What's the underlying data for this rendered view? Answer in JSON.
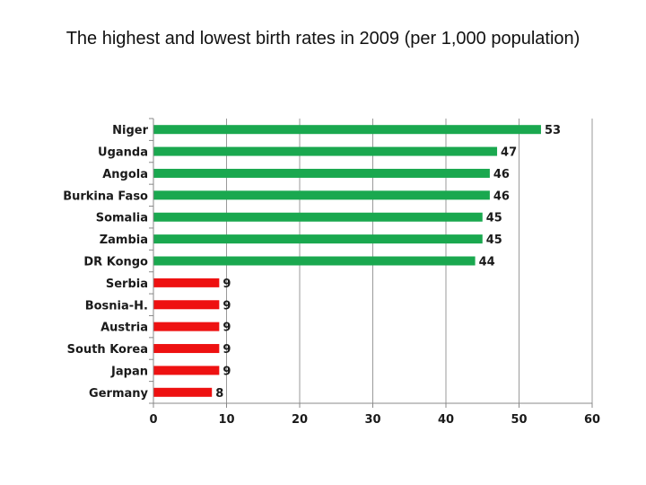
{
  "chart_data": {
    "type": "bar",
    "orientation": "horizontal",
    "title": "The highest and lowest birth rates in 2009 (per 1,000 population)",
    "categories": [
      "Niger",
      "Uganda",
      "Angola",
      "Burkina Faso",
      "Somalia",
      "Zambia",
      "DR Kongo",
      "Serbia",
      "Bosnia-H.",
      "Austria",
      "South Korea",
      "Japan",
      "Germany"
    ],
    "values": [
      53,
      47,
      46,
      46,
      45,
      45,
      44,
      9,
      9,
      9,
      9,
      9,
      8
    ],
    "bar_colors": [
      "#1aa84f",
      "#1aa84f",
      "#1aa84f",
      "#1aa84f",
      "#1aa84f",
      "#1aa84f",
      "#1aa84f",
      "#ee1111",
      "#ee1111",
      "#ee1111",
      "#ee1111",
      "#ee1111",
      "#ee1111"
    ],
    "xlim": [
      0,
      60
    ],
    "xticks": [
      0,
      10,
      20,
      30,
      40,
      50,
      60
    ],
    "grid": "vertical",
    "legend": "none"
  }
}
